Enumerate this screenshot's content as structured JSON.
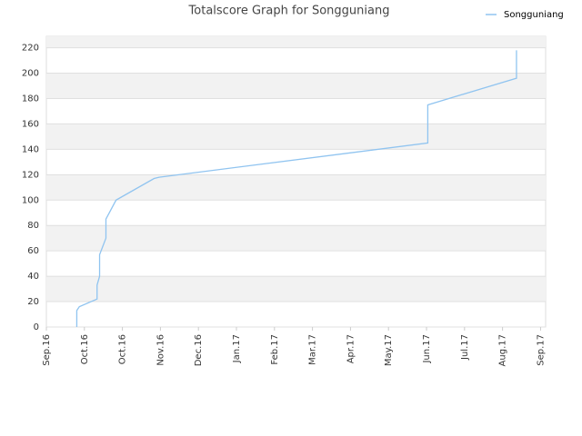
{
  "chart_data": {
    "type": "line",
    "title": "Totalscore Graph for Songguniang",
    "x": [
      24,
      24,
      26,
      40,
      40,
      42,
      42,
      47,
      47,
      55,
      85,
      89,
      301,
      301,
      371,
      371
    ],
    "series": [
      {
        "name": "Songguniang",
        "color": "#90c4f0",
        "values": [
          0,
          13,
          16,
          22,
          33,
          40,
          57,
          70,
          85,
          100,
          117,
          118,
          145,
          175,
          196,
          218
        ]
      }
    ],
    "xlim": [
      0,
      394
    ],
    "xticks": [
      {
        "value": 0,
        "label": "Sep.16"
      },
      {
        "value": 30,
        "label": "Oct.16"
      },
      {
        "value": 60,
        "label": "Oct.16"
      },
      {
        "value": 90,
        "label": "Nov.16"
      },
      {
        "value": 120,
        "label": "Dec.16"
      },
      {
        "value": 150,
        "label": "Jan.17"
      },
      {
        "value": 180,
        "label": "Feb.17"
      },
      {
        "value": 210,
        "label": "Mar.17"
      },
      {
        "value": 240,
        "label": "Apr.17"
      },
      {
        "value": 270,
        "label": "May.17"
      },
      {
        "value": 300,
        "label": "Jun.17"
      },
      {
        "value": 330,
        "label": "Jul.17"
      },
      {
        "value": 360,
        "label": "Aug.17"
      },
      {
        "value": 390,
        "label": "Sep.17"
      }
    ],
    "ylim": [
      0,
      229
    ],
    "yticks": [
      0,
      20,
      40,
      60,
      80,
      100,
      120,
      140,
      160,
      180,
      200,
      220
    ],
    "grid": true,
    "legend": "top-right"
  }
}
